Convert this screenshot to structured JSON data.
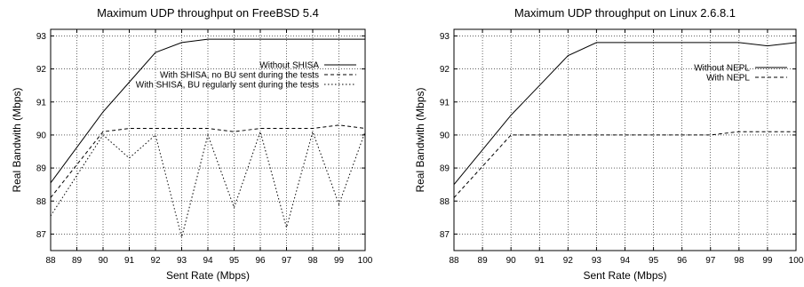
{
  "chart_data": [
    {
      "type": "line",
      "title": "Maximum UDP throughput on FreeBSD 5.4",
      "xlabel": "Sent Rate (Mbps)",
      "ylabel": "Real Bandwith (Mbps)",
      "xlim": [
        88,
        100
      ],
      "ylim": [
        86.5,
        93.2
      ],
      "xticks": [
        88,
        89,
        90,
        91,
        92,
        93,
        94,
        95,
        96,
        97,
        98,
        99,
        100
      ],
      "yticks": [
        87,
        88,
        89,
        90,
        91,
        92,
        93
      ],
      "grid": true,
      "legend_position": "right",
      "x": [
        88,
        90,
        91,
        92,
        93,
        94,
        95,
        96,
        97,
        98,
        99,
        100
      ],
      "series": [
        {
          "name": "Without SHISA",
          "dash": "solid",
          "values": [
            88.55,
            90.7,
            91.6,
            92.5,
            92.8,
            92.9,
            92.9,
            92.9,
            92.9,
            92.9,
            92.9,
            92.9
          ]
        },
        {
          "name": "With SHISA, no BU sent during the tests",
          "dash": "dashed",
          "values": [
            88.1,
            90.1,
            90.2,
            90.2,
            90.2,
            90.2,
            90.1,
            90.2,
            90.2,
            90.2,
            90.3,
            90.2
          ]
        },
        {
          "name": "With SHISA, BU regularly sent during the tests",
          "dash": "dotted",
          "values": [
            87.55,
            90.0,
            89.3,
            90.0,
            86.9,
            90.0,
            87.8,
            90.1,
            87.2,
            90.1,
            87.9,
            90.1
          ]
        }
      ]
    },
    {
      "type": "line",
      "title": "Maximum UDP throughput on Linux 2.6.8.1",
      "xlabel": "Sent Rate (Mbps)",
      "ylabel": "Real Bandwith (Mbps)",
      "xlim": [
        88,
        100
      ],
      "ylim": [
        86.5,
        93.2
      ],
      "xticks": [
        88,
        89,
        90,
        91,
        92,
        93,
        94,
        95,
        96,
        97,
        98,
        99,
        100
      ],
      "yticks": [
        87,
        88,
        89,
        90,
        91,
        92,
        93
      ],
      "grid": true,
      "legend_position": "right",
      "x": [
        88,
        90,
        91,
        92,
        93,
        94,
        95,
        96,
        97,
        98,
        99,
        100
      ],
      "series": [
        {
          "name": "Without NEPL",
          "dash": "solid",
          "values": [
            88.5,
            90.6,
            91.5,
            92.4,
            92.8,
            92.8,
            92.8,
            92.8,
            92.8,
            92.8,
            92.7,
            92.8
          ]
        },
        {
          "name": "With NEPL",
          "dash": "dashed",
          "values": [
            88.1,
            90.0,
            90.0,
            90.0,
            90.0,
            90.0,
            90.0,
            90.0,
            90.0,
            90.1,
            90.1,
            90.1
          ]
        }
      ]
    }
  ]
}
